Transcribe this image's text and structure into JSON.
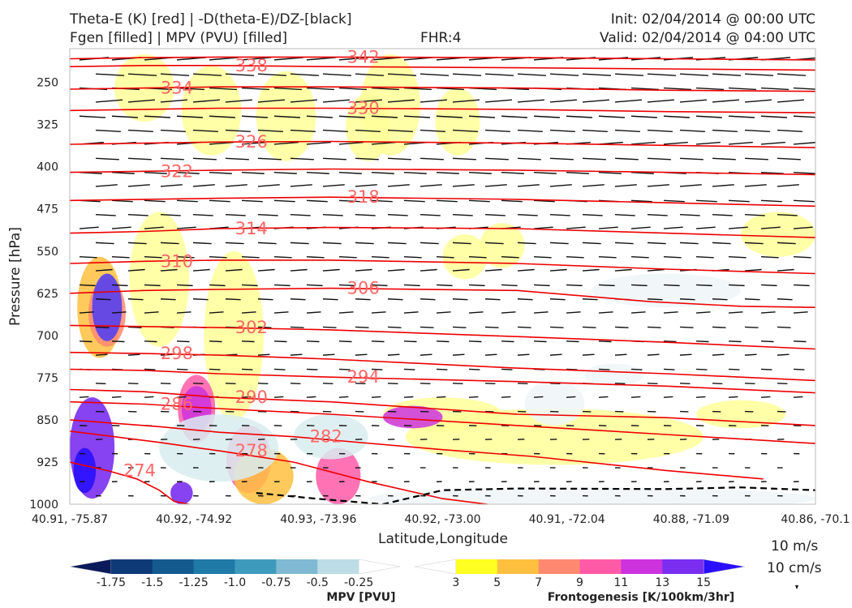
{
  "header": {
    "title_left_1": "Theta-E (K) [red] | -D(theta-E)/DZ-[black]",
    "title_left_2": "Fgen [filled] | MPV (PVU) [filled]",
    "fhr": "FHR:4",
    "init": "Init: 02/04/2014 @ 00:00 UTC",
    "valid": "Valid: 02/04/2014 @ 04:00 UTC"
  },
  "chart_data": {
    "type": "cross-section",
    "xlabel": "Latitude,Longitude",
    "ylabel": "Pressure [hPa]",
    "x_ticks": [
      "40.91, -75.87",
      "40.92, -74.92",
      "40.93, -73.96",
      "40.92, -73.00",
      "40.91, -72.04",
      "40.88, -71.09",
      "40.86, -70.1"
    ],
    "y_ticks": [
      250,
      325,
      400,
      475,
      550,
      625,
      700,
      775,
      850,
      925,
      1000
    ],
    "ylim": [
      1000,
      190
    ],
    "theta_e_contours": [
      {
        "label": "274",
        "p": [
          925,
          940,
          955,
          975,
          995,
          1000
        ],
        "x": [
          0.0,
          0.05,
          0.09,
          0.12,
          0.14,
          0.16
        ]
      },
      {
        "label": "278",
        "p": [
          870,
          890,
          905,
          925,
          960,
          990,
          1000
        ],
        "x": [
          0.0,
          0.12,
          0.2,
          0.3,
          0.4,
          0.5,
          0.56
        ]
      },
      {
        "label": "282",
        "p": [
          850,
          862,
          872,
          880,
          903,
          915,
          940,
          955
        ],
        "x": [
          0.0,
          0.12,
          0.2,
          0.3,
          0.5,
          0.62,
          0.8,
          0.93
        ]
      },
      {
        "label": "286",
        "p": [
          818,
          822,
          830,
          840,
          860,
          876,
          892
        ],
        "x": [
          0.0,
          0.1,
          0.2,
          0.35,
          0.6,
          0.8,
          1.0
        ]
      },
      {
        "label": "290",
        "p": [
          796,
          800,
          810,
          818,
          840,
          846,
          860
        ],
        "x": [
          0.0,
          0.1,
          0.2,
          0.35,
          0.6,
          0.8,
          1.0
        ]
      },
      {
        "label": "294",
        "p": [
          760,
          762,
          768,
          774,
          782,
          790,
          802
        ],
        "x": [
          0.0,
          0.1,
          0.2,
          0.35,
          0.6,
          0.8,
          1.0
        ]
      },
      {
        "label": "298",
        "p": [
          730,
          732,
          735,
          742,
          758,
          768,
          780
        ],
        "x": [
          0.0,
          0.1,
          0.2,
          0.35,
          0.6,
          0.8,
          1.0
        ]
      },
      {
        "label": "302",
        "p": [
          682,
          684,
          686,
          690,
          702,
          712,
          724
        ],
        "x": [
          0.0,
          0.1,
          0.2,
          0.35,
          0.6,
          0.8,
          1.0
        ]
      },
      {
        "label": "306",
        "p": [
          625,
          620,
          618,
          616,
          620,
          640,
          648,
          650
        ],
        "x": [
          0.0,
          0.1,
          0.2,
          0.35,
          0.6,
          0.78,
          0.9,
          1.0
        ]
      },
      {
        "label": "310",
        "p": [
          572,
          568,
          566,
          566,
          572,
          582,
          590
        ],
        "x": [
          0.0,
          0.1,
          0.2,
          0.35,
          0.6,
          0.8,
          1.0
        ]
      },
      {
        "label": "314",
        "p": [
          518,
          515,
          510,
          508,
          510,
          518,
          526
        ],
        "x": [
          0.0,
          0.1,
          0.2,
          0.35,
          0.6,
          0.8,
          1.0
        ]
      },
      {
        "label": "318",
        "p": [
          460,
          458,
          456,
          454,
          458,
          464,
          470
        ],
        "x": [
          0.0,
          0.1,
          0.2,
          0.35,
          0.6,
          0.8,
          1.0
        ]
      },
      {
        "label": "322",
        "p": [
          410,
          408,
          406,
          404,
          406,
          410,
          414
        ],
        "x": [
          0.0,
          0.1,
          0.2,
          0.35,
          0.6,
          0.8,
          1.0
        ]
      },
      {
        "label": "326",
        "p": [
          360,
          358,
          356,
          355,
          358,
          362,
          366
        ],
        "x": [
          0.0,
          0.1,
          0.2,
          0.35,
          0.6,
          0.8,
          1.0
        ]
      },
      {
        "label": "330",
        "p": [
          300,
          298,
          296,
          296,
          298,
          302,
          304
        ],
        "x": [
          0.0,
          0.1,
          0.2,
          0.35,
          0.6,
          0.8,
          1.0
        ]
      },
      {
        "label": "334",
        "p": [
          262,
          260,
          258,
          258,
          260,
          264,
          266
        ],
        "x": [
          0.0,
          0.1,
          0.2,
          0.35,
          0.6,
          0.8,
          1.0
        ]
      },
      {
        "label": "338",
        "p": [
          222,
          220,
          220,
          222,
          224,
          226,
          228
        ],
        "x": [
          0.0,
          0.1,
          0.2,
          0.35,
          0.6,
          0.8,
          1.0
        ]
      },
      {
        "label": "342",
        "p": [
          208,
          206,
          205,
          205,
          206,
          208,
          210
        ],
        "x": [
          0.0,
          0.1,
          0.2,
          0.35,
          0.6,
          0.8,
          1.0
        ]
      }
    ],
    "freezing_line": {
      "p": [
        980,
        990,
        1000,
        975,
        972,
        973,
        970,
        975
      ],
      "x": [
        0.25,
        0.33,
        0.42,
        0.5,
        0.6,
        0.8,
        0.9,
        1.0
      ]
    },
    "mpv_colorbar": {
      "title": "MPV [PVU]",
      "ticks": [
        "-1.75",
        "-1.5",
        "-1.25",
        "-1.0",
        "-0.75",
        "-0.5",
        "-0.25"
      ],
      "colors": [
        "#0a1a5a",
        "#0e3a78",
        "#155a8e",
        "#1f7aa6",
        "#3e9abd",
        "#7fbad2",
        "#bcdde6",
        "#ffffff"
      ]
    },
    "fgen_colorbar": {
      "title": "Frontogenesis [K/100km/3hr]",
      "ticks": [
        "3",
        "5",
        "7",
        "9",
        "11",
        "13",
        "15"
      ],
      "colors": [
        "#ffffff",
        "#ffff22",
        "#ffc040",
        "#ff8a70",
        "#ff5aa8",
        "#cc33dd",
        "#7a2ef0",
        "#2a10ff"
      ]
    },
    "wind_key": {
      "h_label": "10 m/s",
      "v_label": "10 cm/s"
    }
  }
}
